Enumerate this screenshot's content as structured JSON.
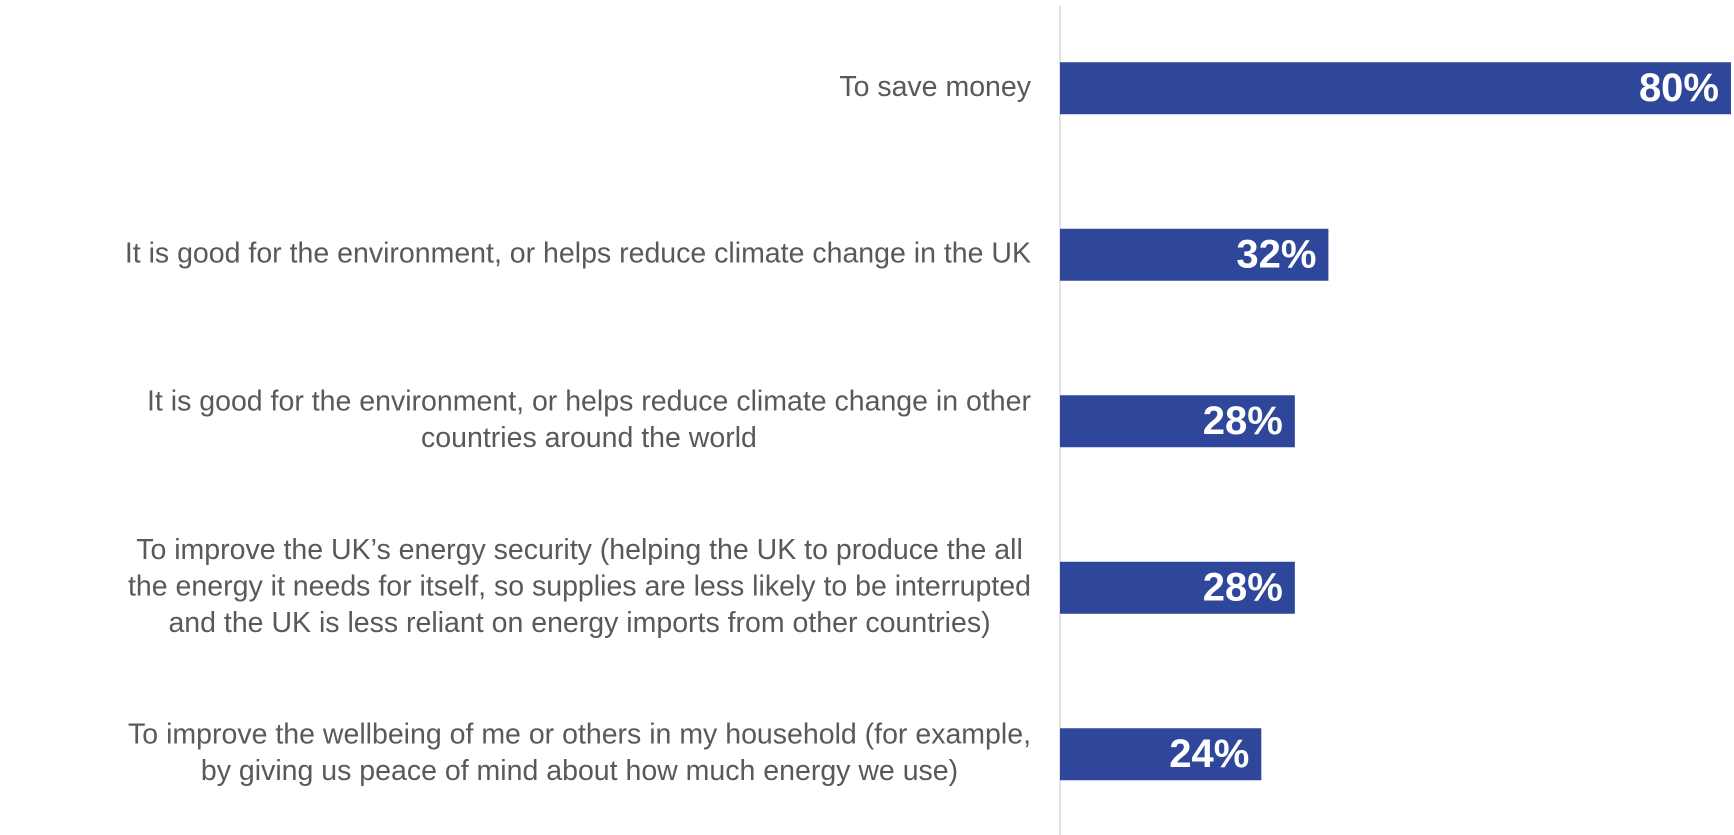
{
  "chart_data": {
    "type": "bar",
    "orientation": "horizontal",
    "categories": [
      [
        "To save money"
      ],
      [
        "It is good for the environment, or helps reduce climate change in the UK"
      ],
      [
        "It is good for the environment, or helps reduce climate change in other",
        "countries around the world"
      ],
      [
        "To improve the UK’s energy security (helping the UK to produce the all",
        "the energy it needs for itself, so supplies are less likely to be interrupted",
        "and the UK is less reliant on energy imports from other countries)"
      ],
      [
        "To improve the wellbeing of me or others in my household (for example,",
        "by giving us peace of mind about how much energy we use)"
      ]
    ],
    "values": [
      80,
      32,
      28,
      28,
      24
    ],
    "value_labels": [
      "80%",
      "32%",
      "28%",
      "28%",
      "24%"
    ],
    "color": "#2f479b"
  }
}
